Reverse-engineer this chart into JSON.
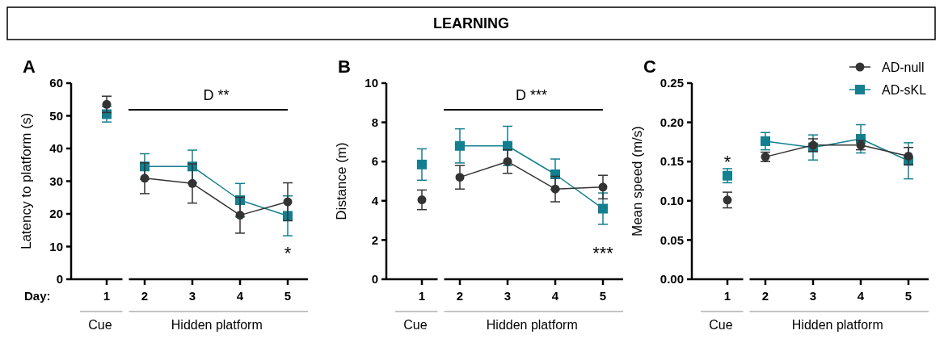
{
  "chart_data": [
    {
      "type": "line",
      "subtitle": "A",
      "xlabel": "Day:",
      "ylabel": "Latency to platform (s)",
      "categories": [
        "1",
        "2",
        "3",
        "4",
        "5"
      ],
      "ylim": [
        0,
        60
      ],
      "yticks": [
        0,
        10,
        20,
        30,
        40,
        50,
        60
      ],
      "series": [
        {
          "type": "line",
          "color": "#333333",
          "marker": "circle",
          "values": [
            null,
            30.9,
            29.3,
            19.6,
            23.7
          ],
          "errors": [
            null,
            4.7,
            6,
            5.5,
            5.8
          ]
        },
        {
          "type": "line",
          "color": "#137f8f",
          "marker": "square",
          "values": [
            null,
            34.5,
            34.5,
            24.2,
            19.4
          ],
          "errors": [
            null,
            3.9,
            5,
            5.1,
            6.1
          ]
        },
        {
          "type": "scatter",
          "color": "#333333",
          "marker": "circle",
          "values": [
            53.5,
            null,
            null,
            null,
            null
          ],
          "errors": [
            2.5,
            null,
            null,
            null,
            null
          ]
        },
        {
          "type": "scatter",
          "color": "#137f8f",
          "marker": "square",
          "values": [
            50.5,
            null,
            null,
            null,
            null
          ],
          "errors": [
            2.4,
            null,
            null,
            null,
            null
          ]
        }
      ],
      "annotations": [
        "Cue",
        "Hidden platform",
        "D **",
        "*"
      ]
    },
    {
      "type": "line",
      "title": "LEARNING",
      "subtitle": "B",
      "ylabel": "Distance (m)",
      "categories": [
        "1",
        "2",
        "3",
        "4",
        "5"
      ],
      "ylim": [
        0,
        10
      ],
      "yticks": [
        0,
        2,
        4,
        6,
        8,
        10
      ],
      "series": [
        {
          "type": "line",
          "color": "#333333",
          "marker": "circle",
          "values": [
            null,
            5.2,
            6.0,
            4.6,
            4.7
          ],
          "errors": [
            null,
            0.6,
            0.6,
            0.65,
            0.6
          ]
        },
        {
          "type": "line",
          "color": "#137f8f",
          "marker": "square",
          "values": [
            null,
            6.8,
            6.8,
            5.35,
            3.6
          ],
          "errors": [
            null,
            0.87,
            1.0,
            0.78,
            0.8
          ]
        },
        {
          "type": "scatter",
          "color": "#333333",
          "marker": "circle",
          "values": [
            4.05,
            null,
            null,
            null,
            null
          ],
          "errors": [
            0.5,
            null,
            null,
            null,
            null
          ]
        },
        {
          "type": "scatter",
          "color": "#137f8f",
          "marker": "square",
          "values": [
            5.85,
            null,
            null,
            null,
            null
          ],
          "errors": [
            0.8,
            null,
            null,
            null,
            null
          ]
        }
      ],
      "annotations": [
        "Cue",
        "Hidden platform",
        "D ***",
        "***"
      ]
    },
    {
      "type": "line",
      "subtitle": "C",
      "ylabel": "Mean speed (m/s)",
      "categories": [
        "1",
        "2",
        "3",
        "4",
        "5"
      ],
      "ylim": [
        0,
        0.25
      ],
      "yticks": [
        {
          "value": 0,
          "label": "0.00"
        },
        {
          "value": 0.05,
          "label": "0.05"
        },
        {
          "value": 0.1,
          "label": "0.10"
        },
        {
          "value": 0.15,
          "label": "0.15"
        },
        {
          "value": 0.2,
          "label": "0.20"
        },
        {
          "value": 0.25,
          "label": "0.25"
        }
      ],
      "legend": "top right",
      "series": [
        {
          "name": "AD-null",
          "type": "line",
          "color": "#333333",
          "marker": "circle",
          "values": [
            null,
            0.156,
            0.171,
            0.171,
            0.157
          ],
          "errors": [
            null,
            0.006,
            0.008,
            0.006,
            0.011
          ]
        },
        {
          "name": "AD-sKL",
          "type": "line",
          "color": "#137f8f",
          "marker": "square",
          "values": [
            null,
            0.176,
            0.168,
            0.179,
            0.151
          ],
          "errors": [
            null,
            0.011,
            0.016,
            0.018,
            0.023
          ]
        },
        {
          "type": "scatter",
          "color": "#333333",
          "marker": "circle",
          "values": [
            0.101,
            null,
            null,
            null,
            null
          ],
          "errors": [
            0.01,
            null,
            null,
            null,
            null
          ]
        },
        {
          "type": "scatter",
          "color": "#137f8f",
          "marker": "square",
          "values": [
            0.132,
            null,
            null,
            null,
            null
          ],
          "errors": [
            0.009,
            null,
            null,
            null,
            null
          ]
        }
      ],
      "annotations": [
        "Cue",
        "Hidden platform",
        null,
        "*"
      ]
    }
  ]
}
